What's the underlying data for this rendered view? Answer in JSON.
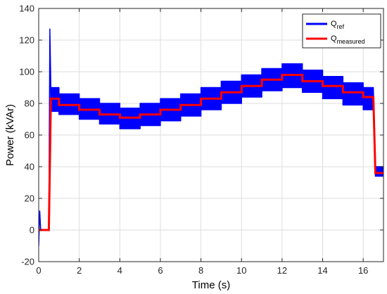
{
  "chart_data": {
    "type": "line",
    "xlabel": "Time (s)",
    "ylabel": "Power (kVAr)",
    "xlim": [
      0,
      17
    ],
    "ylim": [
      -20,
      140
    ],
    "xticks": [
      0,
      2,
      4,
      6,
      8,
      10,
      12,
      14,
      16
    ],
    "yticks": [
      -20,
      0,
      20,
      40,
      60,
      80,
      100,
      120,
      140
    ],
    "xtick_labels": [
      "0",
      "2",
      "4",
      "6",
      "8",
      "10",
      "12",
      "14",
      "16"
    ],
    "ytick_labels": [
      "-20",
      "0",
      "20",
      "40",
      "60",
      "80",
      "100",
      "120",
      "140"
    ],
    "grid": true,
    "legend_position": "top-right",
    "legend": [
      {
        "base": "Q",
        "sub": "ref",
        "color": "#0000ff"
      },
      {
        "base": "Q",
        "sub": "measured",
        "color": "#ff0000"
      }
    ],
    "series": [
      {
        "name": "Qref",
        "color": "#0000ff",
        "style": "band",
        "band_lower": [
          [
            0,
            -10
          ],
          [
            0.05,
            12
          ],
          [
            0.1,
            0
          ],
          [
            0.5,
            0
          ],
          [
            0.55,
            127
          ],
          [
            0.6,
            75
          ],
          [
            1.0,
            75
          ],
          [
            1.0,
            73
          ],
          [
            2.0,
            73
          ],
          [
            2.0,
            70
          ],
          [
            3.0,
            70
          ],
          [
            3.0,
            67
          ],
          [
            4.0,
            67
          ],
          [
            4.0,
            64
          ],
          [
            5.0,
            64
          ],
          [
            5.0,
            66
          ],
          [
            6.0,
            66
          ],
          [
            6.0,
            69
          ],
          [
            7.0,
            69
          ],
          [
            7.0,
            72
          ],
          [
            8.0,
            72
          ],
          [
            8.0,
            76
          ],
          [
            9.0,
            76
          ],
          [
            9.0,
            80
          ],
          [
            10.0,
            80
          ],
          [
            10.0,
            84
          ],
          [
            11.0,
            84
          ],
          [
            11.0,
            88
          ],
          [
            12.0,
            88
          ],
          [
            12.0,
            90
          ],
          [
            13.0,
            90
          ],
          [
            13.0,
            87
          ],
          [
            14.0,
            87
          ],
          [
            14.0,
            83
          ],
          [
            15.0,
            83
          ],
          [
            15.0,
            79
          ],
          [
            16.0,
            79
          ],
          [
            16.0,
            76
          ],
          [
            16.5,
            76
          ],
          [
            16.6,
            34
          ],
          [
            17.0,
            34
          ]
        ],
        "band_upper": [
          [
            0,
            -10
          ],
          [
            0.05,
            12
          ],
          [
            0.1,
            0
          ],
          [
            0.5,
            0
          ],
          [
            0.55,
            127
          ],
          [
            0.6,
            90
          ],
          [
            1.0,
            90
          ],
          [
            1.0,
            86
          ],
          [
            2.0,
            86
          ],
          [
            2.0,
            83
          ],
          [
            3.0,
            83
          ],
          [
            3.0,
            80
          ],
          [
            4.0,
            80
          ],
          [
            4.0,
            77
          ],
          [
            5.0,
            77
          ],
          [
            5.0,
            80
          ],
          [
            6.0,
            80
          ],
          [
            6.0,
            83
          ],
          [
            7.0,
            83
          ],
          [
            7.0,
            86
          ],
          [
            8.0,
            86
          ],
          [
            8.0,
            90
          ],
          [
            9.0,
            90
          ],
          [
            9.0,
            94
          ],
          [
            10.0,
            94
          ],
          [
            10.0,
            98
          ],
          [
            11.0,
            98
          ],
          [
            11.0,
            102
          ],
          [
            12.0,
            102
          ],
          [
            12.0,
            105
          ],
          [
            13.0,
            105
          ],
          [
            13.0,
            101
          ],
          [
            14.0,
            101
          ],
          [
            14.0,
            97
          ],
          [
            15.0,
            97
          ],
          [
            15.0,
            93
          ],
          [
            16.0,
            93
          ],
          [
            16.0,
            90
          ],
          [
            16.5,
            90
          ],
          [
            16.6,
            40
          ],
          [
            17.0,
            40
          ]
        ]
      },
      {
        "name": "Qmeasured",
        "color": "#ff0000",
        "style": "line",
        "points": [
          [
            0,
            0
          ],
          [
            0.5,
            0
          ],
          [
            0.6,
            83
          ],
          [
            1.0,
            83
          ],
          [
            1.0,
            79
          ],
          [
            2.0,
            79
          ],
          [
            2.0,
            76
          ],
          [
            3.0,
            76
          ],
          [
            3.0,
            73
          ],
          [
            4.0,
            73
          ],
          [
            4.0,
            71
          ],
          [
            5.0,
            71
          ],
          [
            5.0,
            73
          ],
          [
            6.0,
            73
          ],
          [
            6.0,
            76
          ],
          [
            7.0,
            76
          ],
          [
            7.0,
            79
          ],
          [
            8.0,
            79
          ],
          [
            8.0,
            83
          ],
          [
            9.0,
            83
          ],
          [
            9.0,
            87
          ],
          [
            10.0,
            87
          ],
          [
            10.0,
            91
          ],
          [
            11.0,
            91
          ],
          [
            11.0,
            95
          ],
          [
            12.0,
            95
          ],
          [
            12.0,
            98
          ],
          [
            13.0,
            98
          ],
          [
            13.0,
            94
          ],
          [
            14.0,
            94
          ],
          [
            14.0,
            91
          ],
          [
            15.0,
            91
          ],
          [
            15.0,
            87
          ],
          [
            16.0,
            87
          ],
          [
            16.0,
            84
          ],
          [
            16.5,
            84
          ],
          [
            16.6,
            36
          ],
          [
            17.0,
            36
          ]
        ]
      }
    ]
  }
}
